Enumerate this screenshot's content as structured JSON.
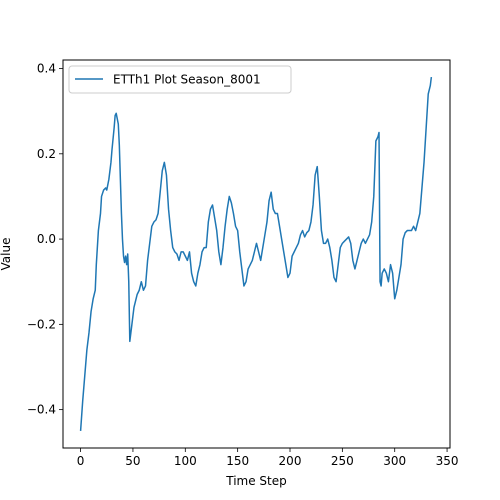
{
  "chart_data": {
    "type": "line",
    "title": "",
    "xlabel": "Time Step",
    "ylabel": "Value",
    "xlim": [
      -16.8,
      352.8
    ],
    "ylim": [
      -0.49,
      0.42
    ],
    "xticks": [
      0,
      50,
      100,
      150,
      200,
      250,
      300,
      350
    ],
    "yticks": [
      -0.4,
      -0.2,
      0.0,
      0.2,
      0.4
    ],
    "xtick_labels": [
      "0",
      "50",
      "100",
      "150",
      "200",
      "250",
      "300",
      "350"
    ],
    "ytick_labels": [
      "−0.4",
      "−0.2",
      "0.0",
      "0.2",
      "0.4"
    ],
    "legend_placement": "top-left",
    "grid": false,
    "series": [
      {
        "name": "ETTh1 Plot Season_8001",
        "color": "#1f77b4",
        "x": [
          0,
          2,
          4,
          6,
          8,
          10,
          12,
          14,
          15,
          17,
          19,
          20,
          22,
          24,
          25,
          27,
          29,
          30,
          32,
          33,
          34,
          36,
          37,
          38,
          39,
          40,
          41,
          42,
          43,
          44,
          45,
          46,
          47,
          48,
          49,
          50,
          51,
          52,
          54,
          56,
          58,
          60,
          62,
          64,
          66,
          68,
          70,
          72,
          74,
          76,
          78,
          80,
          82,
          84,
          86,
          88,
          90,
          92,
          94,
          96,
          98,
          100,
          102,
          104,
          106,
          108,
          110,
          112,
          114,
          116,
          118,
          120,
          122,
          124,
          126,
          128,
          130,
          132,
          134,
          136,
          138,
          140,
          142,
          144,
          146,
          148,
          150,
          152,
          154,
          156,
          158,
          160,
          162,
          164,
          166,
          168,
          170,
          172,
          174,
          176,
          178,
          180,
          182,
          184,
          186,
          188,
          190,
          192,
          194,
          196,
          198,
          200,
          202,
          204,
          206,
          208,
          210,
          212,
          214,
          216,
          218,
          220,
          222,
          224,
          226,
          228,
          230,
          232,
          234,
          236,
          238,
          240,
          242,
          244,
          246,
          248,
          250,
          252,
          254,
          256,
          258,
          260,
          262,
          264,
          266,
          268,
          270,
          272,
          274,
          276,
          278,
          280,
          282,
          284,
          285,
          286,
          287,
          288,
          290,
          292,
          294,
          296,
          298,
          300,
          302,
          304,
          306,
          308,
          310,
          312,
          314,
          316,
          318,
          320,
          322,
          324,
          326,
          328,
          330,
          332,
          334,
          335
        ],
        "y": [
          -0.45,
          -0.38,
          -0.32,
          -0.26,
          -0.22,
          -0.17,
          -0.14,
          -0.12,
          -0.06,
          0.02,
          0.06,
          0.1,
          0.115,
          0.12,
          0.115,
          0.14,
          0.18,
          0.21,
          0.26,
          0.29,
          0.295,
          0.27,
          0.22,
          0.14,
          0.06,
          0.0,
          -0.04,
          -0.055,
          -0.04,
          -0.06,
          -0.035,
          -0.1,
          -0.24,
          -0.22,
          -0.2,
          -0.18,
          -0.16,
          -0.15,
          -0.13,
          -0.12,
          -0.1,
          -0.12,
          -0.11,
          -0.05,
          -0.01,
          0.03,
          0.04,
          0.045,
          0.06,
          0.11,
          0.16,
          0.18,
          0.15,
          0.07,
          0.02,
          -0.02,
          -0.03,
          -0.035,
          -0.05,
          -0.03,
          -0.03,
          -0.04,
          -0.05,
          -0.03,
          -0.08,
          -0.1,
          -0.11,
          -0.08,
          -0.06,
          -0.03,
          -0.02,
          -0.02,
          0.04,
          0.07,
          0.08,
          0.05,
          0.02,
          -0.03,
          -0.06,
          -0.02,
          0.03,
          0.07,
          0.1,
          0.085,
          0.06,
          0.03,
          0.02,
          -0.03,
          -0.07,
          -0.11,
          -0.1,
          -0.07,
          -0.06,
          -0.05,
          -0.03,
          -0.01,
          -0.03,
          -0.05,
          -0.02,
          0.01,
          0.04,
          0.09,
          0.11,
          0.07,
          0.06,
          0.06,
          0.03,
          0.0,
          -0.03,
          -0.06,
          -0.09,
          -0.08,
          -0.04,
          -0.03,
          -0.02,
          -0.01,
          0.01,
          0.02,
          0.005,
          0.015,
          0.02,
          0.04,
          0.08,
          0.15,
          0.17,
          0.1,
          0.02,
          -0.01,
          -0.01,
          0.0,
          -0.02,
          -0.05,
          -0.09,
          -0.1,
          -0.06,
          -0.02,
          -0.01,
          -0.005,
          0.0,
          0.005,
          -0.01,
          -0.05,
          -0.07,
          -0.05,
          -0.03,
          -0.01,
          0.0,
          -0.01,
          0.0,
          0.01,
          0.04,
          0.1,
          0.23,
          0.24,
          0.25,
          -0.1,
          -0.11,
          -0.08,
          -0.07,
          -0.08,
          -0.1,
          -0.06,
          -0.08,
          -0.14,
          -0.12,
          -0.09,
          -0.06,
          0.0,
          0.015,
          0.02,
          0.02,
          0.02,
          0.03,
          0.02,
          0.04,
          0.06,
          0.12,
          0.18,
          0.26,
          0.34,
          0.36,
          0.38
        ]
      }
    ]
  }
}
